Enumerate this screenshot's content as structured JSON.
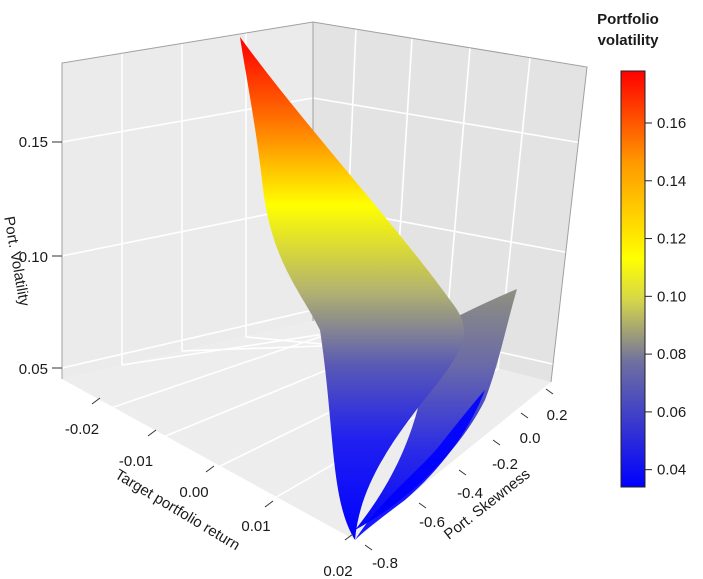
{
  "chart_data": {
    "type": "surface3d",
    "zlabel": "Port. Volatility",
    "xlabel": "Target portfolio return",
    "ylabel": "Port. Skewness",
    "colorbar_title": [
      "Portfolio",
      "volatility"
    ],
    "z_ticks": [
      "0.05",
      "0.10",
      "0.15"
    ],
    "x_ticks": [
      "-0.02",
      "-0.01",
      "0.00",
      "0.01",
      "0.02"
    ],
    "y_ticks": [
      "-0.8",
      "-0.6",
      "-0.4",
      "-0.2",
      "0.0",
      "0.2"
    ],
    "colorbar_ticks": [
      "0.04",
      "0.06",
      "0.08",
      "0.10",
      "0.12",
      "0.14",
      "0.16"
    ],
    "colorbar_range": [
      0.034,
      0.178
    ],
    "colors": {
      "low": "#0000ff",
      "mid": "#ffff00",
      "high": "#ff0000",
      "panel": "#ebebeb",
      "grid": "#ffffff"
    },
    "surface": {
      "description_points": [
        {
          "return": 0.02,
          "skewness": -0.85,
          "volatility": 0.034
        },
        {
          "return": -0.02,
          "skewness": -0.85,
          "volatility": 0.178
        },
        {
          "return": -0.02,
          "skewness": 0.25,
          "volatility": 0.086
        },
        {
          "return": 0.02,
          "skewness": 0.25,
          "volatility": 0.034
        }
      ]
    }
  }
}
